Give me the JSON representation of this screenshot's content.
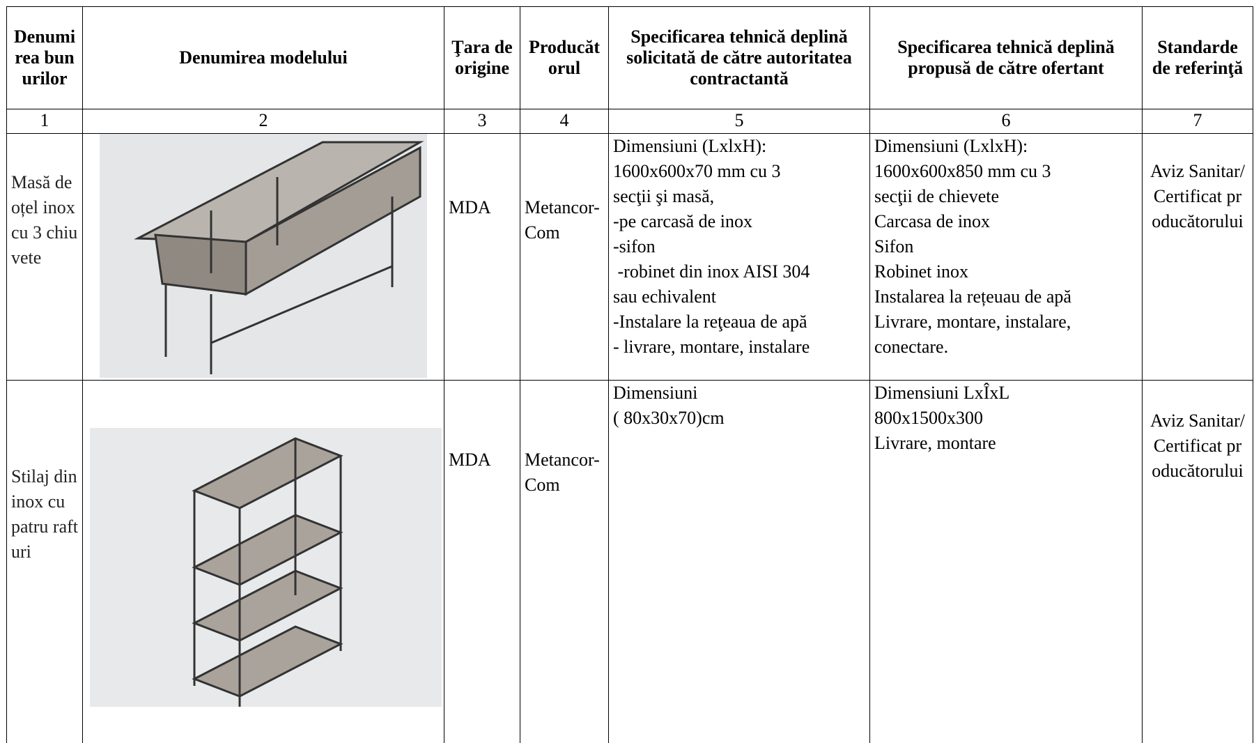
{
  "table": {
    "header": [
      "Denumirea bunurilor",
      "Denumirea modelului",
      "Ţara de origine",
      "Producătorul",
      "Specificarea tehnică deplină solicitată de către autoritatea contractantă",
      "Specificarea tehnică deplină propusă de către ofertant",
      "Standarde de referinţă"
    ],
    "numbers": [
      1,
      2,
      3,
      4,
      5,
      6,
      7
    ],
    "rows": [
      {
        "name": "Masă de oțel inox cu 3 chiuvete",
        "origin": "MDA",
        "producer": "Metancor-Com",
        "requested": [
          "Dimensiuni (LxlxH):",
          "1600x600x70 mm cu 3",
          "secţii şi masă,",
          "-pe carcasă de inox",
          "-sifon",
          " -robinet din inox AISI 304",
          "sau echivalent",
          "-Instalare la reţeaua de apă",
          "- livrare, montare, instalare"
        ],
        "offered": [
          "Dimensiuni (LxlxH):",
          "1600x600x850 mm cu 3",
          "secţii de chievete",
          "Carcasa de inox",
          "Sifon",
          "Robinet inox",
          "Instalarea la rețeuau de apă",
          "Livrare, montare, instalare,",
          "conectare."
        ],
        "standard": "Aviz Sanitar/ Certificat producătorului"
      },
      {
        "name": "Stilaj din inox cu patru rafturi",
        "origin": "MDA",
        "producer": "Metancor-Com",
        "requested": [
          "Dimensiuni",
          "( 80x30x70)cm"
        ],
        "offered": [
          "Dimensiuni LxÎxL",
          "800x1500x300",
          "Livrare, montare"
        ],
        "standard": "Aviz Sanitar/ Certificat producătorului"
      }
    ]
  }
}
